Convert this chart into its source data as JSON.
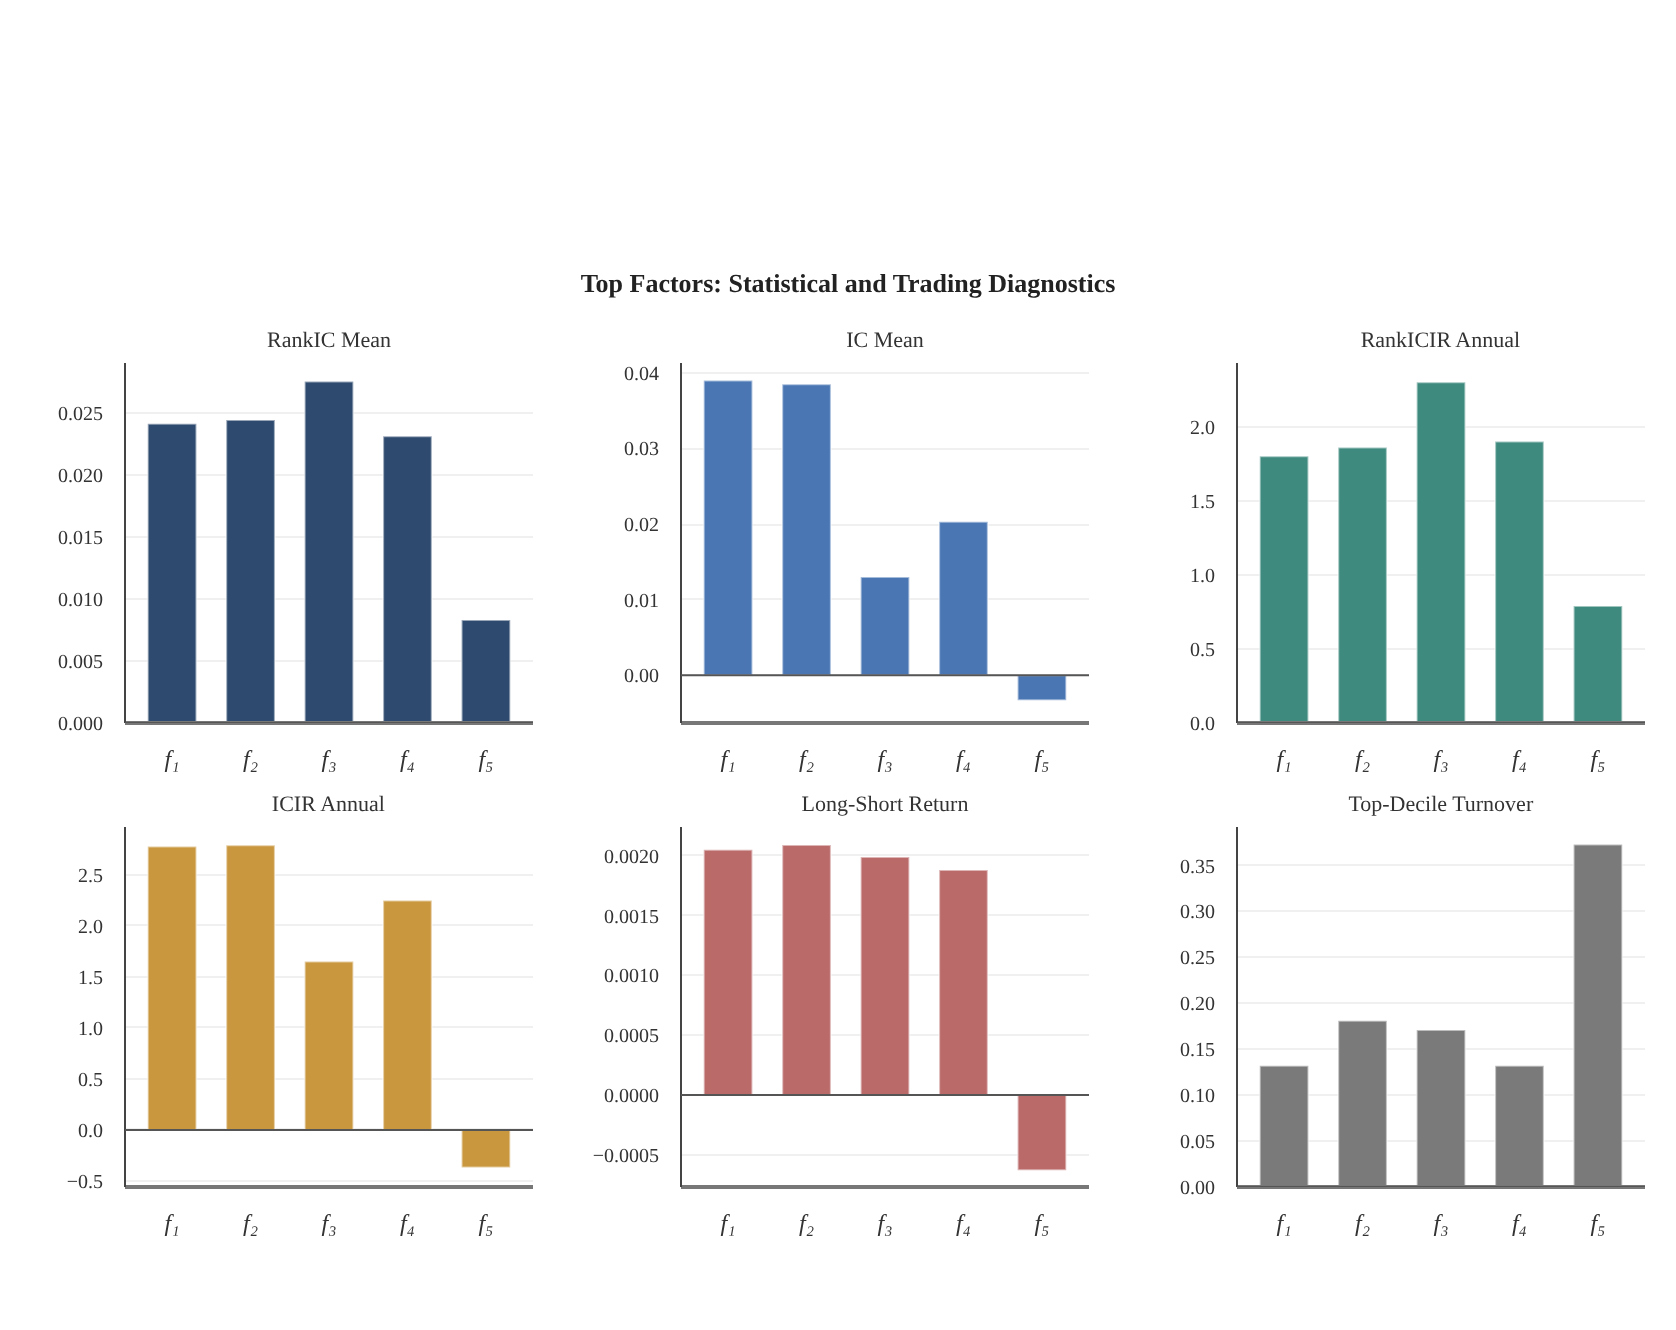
{
  "chart_data": [
    {
      "type": "bar",
      "title": "RankIC Mean",
      "annotations": [
        "Top Factors: Statistical and Trading Diagnostics"
      ],
      "categories": [
        "f₁",
        "f₂",
        "f₃",
        "f₄",
        "f₅"
      ],
      "values": [
        0.0241,
        0.0244,
        0.0275,
        0.0231,
        0.0083
      ],
      "color": "#2e4a6e",
      "ylim": [
        0,
        0.029
      ],
      "yticks": [
        {
          "value": 0,
          "label": "0.000"
        },
        {
          "value": 0.005,
          "label": "0.005"
        },
        {
          "value": 0.01,
          "label": "0.010"
        },
        {
          "value": 0.015,
          "label": "0.015"
        },
        {
          "value": 0.02,
          "label": "0.020"
        },
        {
          "value": 0.025,
          "label": "0.025"
        }
      ],
      "grid": "y",
      "ref_lines": [
        {
          "axis": "y",
          "value": 0
        }
      ]
    },
    {
      "type": "bar",
      "title": "IC Mean",
      "categories": [
        "f₁",
        "f₂",
        "f₃",
        "f₄",
        "f₅"
      ],
      "values": [
        0.039,
        0.0385,
        0.013,
        0.0203,
        -0.0033
      ],
      "color": "#4a77b4",
      "ylim": [
        -0.0063,
        0.0413
      ],
      "yticks": [
        {
          "value": 0,
          "label": "0.00"
        },
        {
          "value": 0.01,
          "label": "0.01"
        },
        {
          "value": 0.02,
          "label": "0.02"
        },
        {
          "value": 0.03,
          "label": "0.03"
        },
        {
          "value": 0.04,
          "label": "0.04"
        }
      ],
      "grid": "y",
      "ref_lines": [
        {
          "axis": "y",
          "value": 0
        }
      ]
    },
    {
      "type": "bar",
      "title": "RankICIR Annual",
      "categories": [
        "f₁",
        "f₂",
        "f₃",
        "f₄",
        "f₅"
      ],
      "values": [
        1.8,
        1.86,
        2.3,
        1.9,
        0.79
      ],
      "color": "#3f8a7e",
      "ylim": [
        0,
        2.43
      ],
      "yticks": [
        {
          "value": 0,
          "label": "0.0"
        },
        {
          "value": 0.5,
          "label": "0.5"
        },
        {
          "value": 1,
          "label": "1.0"
        },
        {
          "value": 1.5,
          "label": "1.5"
        },
        {
          "value": 2,
          "label": "2.0"
        }
      ],
      "grid": "y",
      "ref_lines": [
        {
          "axis": "y",
          "value": 0
        }
      ]
    },
    {
      "type": "bar",
      "title": "ICIR Annual",
      "categories": [
        "f₁",
        "f₂",
        "f₃",
        "f₄",
        "f₅"
      ],
      "values": [
        2.78,
        2.79,
        1.65,
        2.25,
        -0.37
      ],
      "color": "#c9973e",
      "ylim": [
        -0.56,
        2.97
      ],
      "yticks": [
        {
          "value": -0.5,
          "label": "−0.5"
        },
        {
          "value": 0,
          "label": "0.0"
        },
        {
          "value": 0.5,
          "label": "0.5"
        },
        {
          "value": 1,
          "label": "1.0"
        },
        {
          "value": 1.5,
          "label": "1.5"
        },
        {
          "value": 2,
          "label": "2.0"
        },
        {
          "value": 2.5,
          "label": "2.5"
        }
      ],
      "grid": "y",
      "ref_lines": [
        {
          "axis": "y",
          "value": 0
        }
      ]
    },
    {
      "type": "bar",
      "title": "Long-Short Return",
      "categories": [
        "f₁",
        "f₂",
        "f₃",
        "f₄",
        "f₅"
      ],
      "values": [
        0.00205,
        0.00209,
        0.00199,
        0.00188,
        -0.00063
      ],
      "color": "#bb6a6a",
      "ylim": [
        -0.00077,
        0.00224
      ],
      "yticks": [
        {
          "value": -0.0005,
          "label": "−0.0005"
        },
        {
          "value": 0,
          "label": "0.0000"
        },
        {
          "value": 0.0005,
          "label": "0.0005"
        },
        {
          "value": 0.001,
          "label": "0.0010"
        },
        {
          "value": 0.0015,
          "label": "0.0015"
        },
        {
          "value": 0.002,
          "label": "0.0020"
        }
      ],
      "grid": "y",
      "ref_lines": [
        {
          "axis": "y",
          "value": 0
        }
      ]
    },
    {
      "type": "bar",
      "title": "Top-Decile Turnover",
      "categories": [
        "f₁",
        "f₂",
        "f₃",
        "f₄",
        "f₅"
      ],
      "values": [
        0.132,
        0.181,
        0.171,
        0.132,
        0.373
      ],
      "color": "#7a7a7a",
      "ylim": [
        0,
        0.392
      ],
      "yticks": [
        {
          "value": 0,
          "label": "0.00"
        },
        {
          "value": 0.05,
          "label": "0.05"
        },
        {
          "value": 0.1,
          "label": "0.10"
        },
        {
          "value": 0.15,
          "label": "0.15"
        },
        {
          "value": 0.2,
          "label": "0.20"
        },
        {
          "value": 0.25,
          "label": "0.25"
        },
        {
          "value": 0.3,
          "label": "0.30"
        },
        {
          "value": 0.35,
          "label": "0.35"
        }
      ],
      "grid": "y",
      "ref_lines": [
        {
          "axis": "y",
          "value": 0
        }
      ]
    }
  ]
}
